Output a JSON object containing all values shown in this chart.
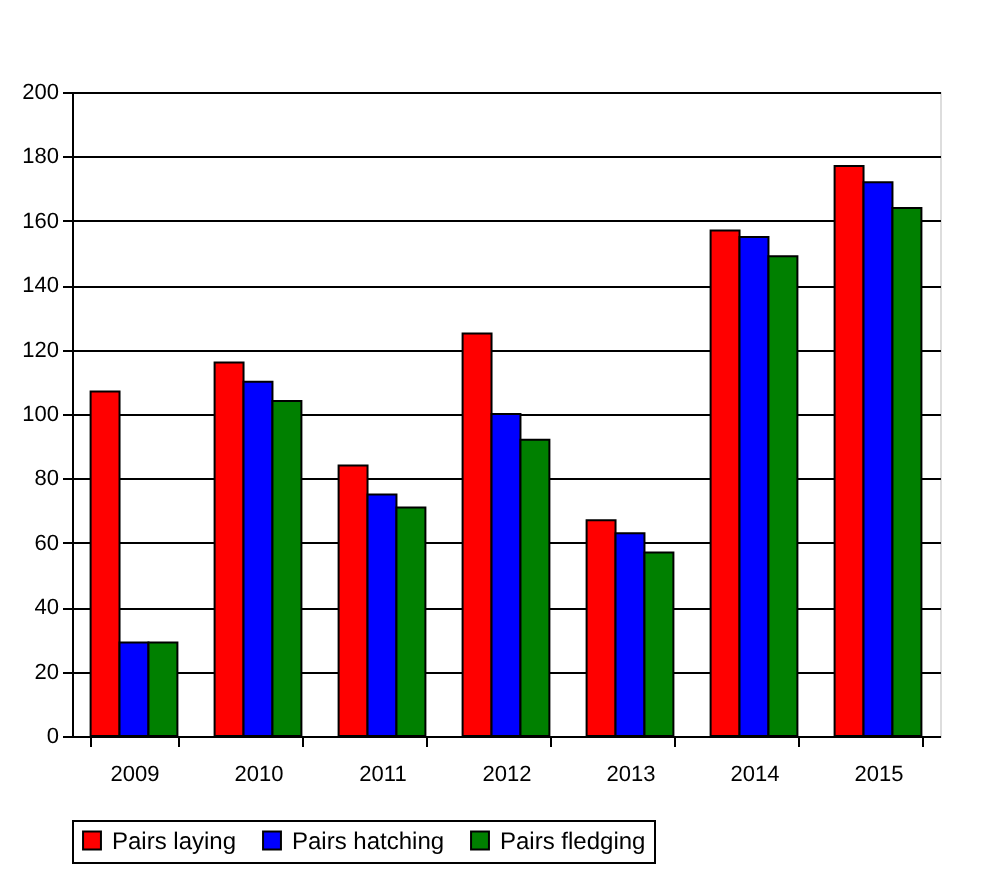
{
  "chart_data": {
    "type": "bar",
    "categories": [
      "2009",
      "2010",
      "2011",
      "2012",
      "2013",
      "2014",
      "2015"
    ],
    "series": [
      {
        "name": "Pairs laying",
        "color": "#ff0000",
        "values": [
          107,
          116,
          84,
          125,
          67,
          157,
          177
        ]
      },
      {
        "name": "Pairs hatching",
        "color": "#0000ff",
        "values": [
          29,
          110,
          75,
          100,
          63,
          155,
          172
        ]
      },
      {
        "name": "Pairs fledging",
        "color": "#008000",
        "values": [
          29,
          104,
          71,
          92,
          57,
          149,
          164
        ]
      }
    ],
    "ylim": [
      0,
      200
    ],
    "yticks": [
      0,
      20,
      40,
      60,
      80,
      100,
      120,
      140,
      160,
      180,
      200
    ],
    "grid": "y",
    "legend": "bottom"
  }
}
